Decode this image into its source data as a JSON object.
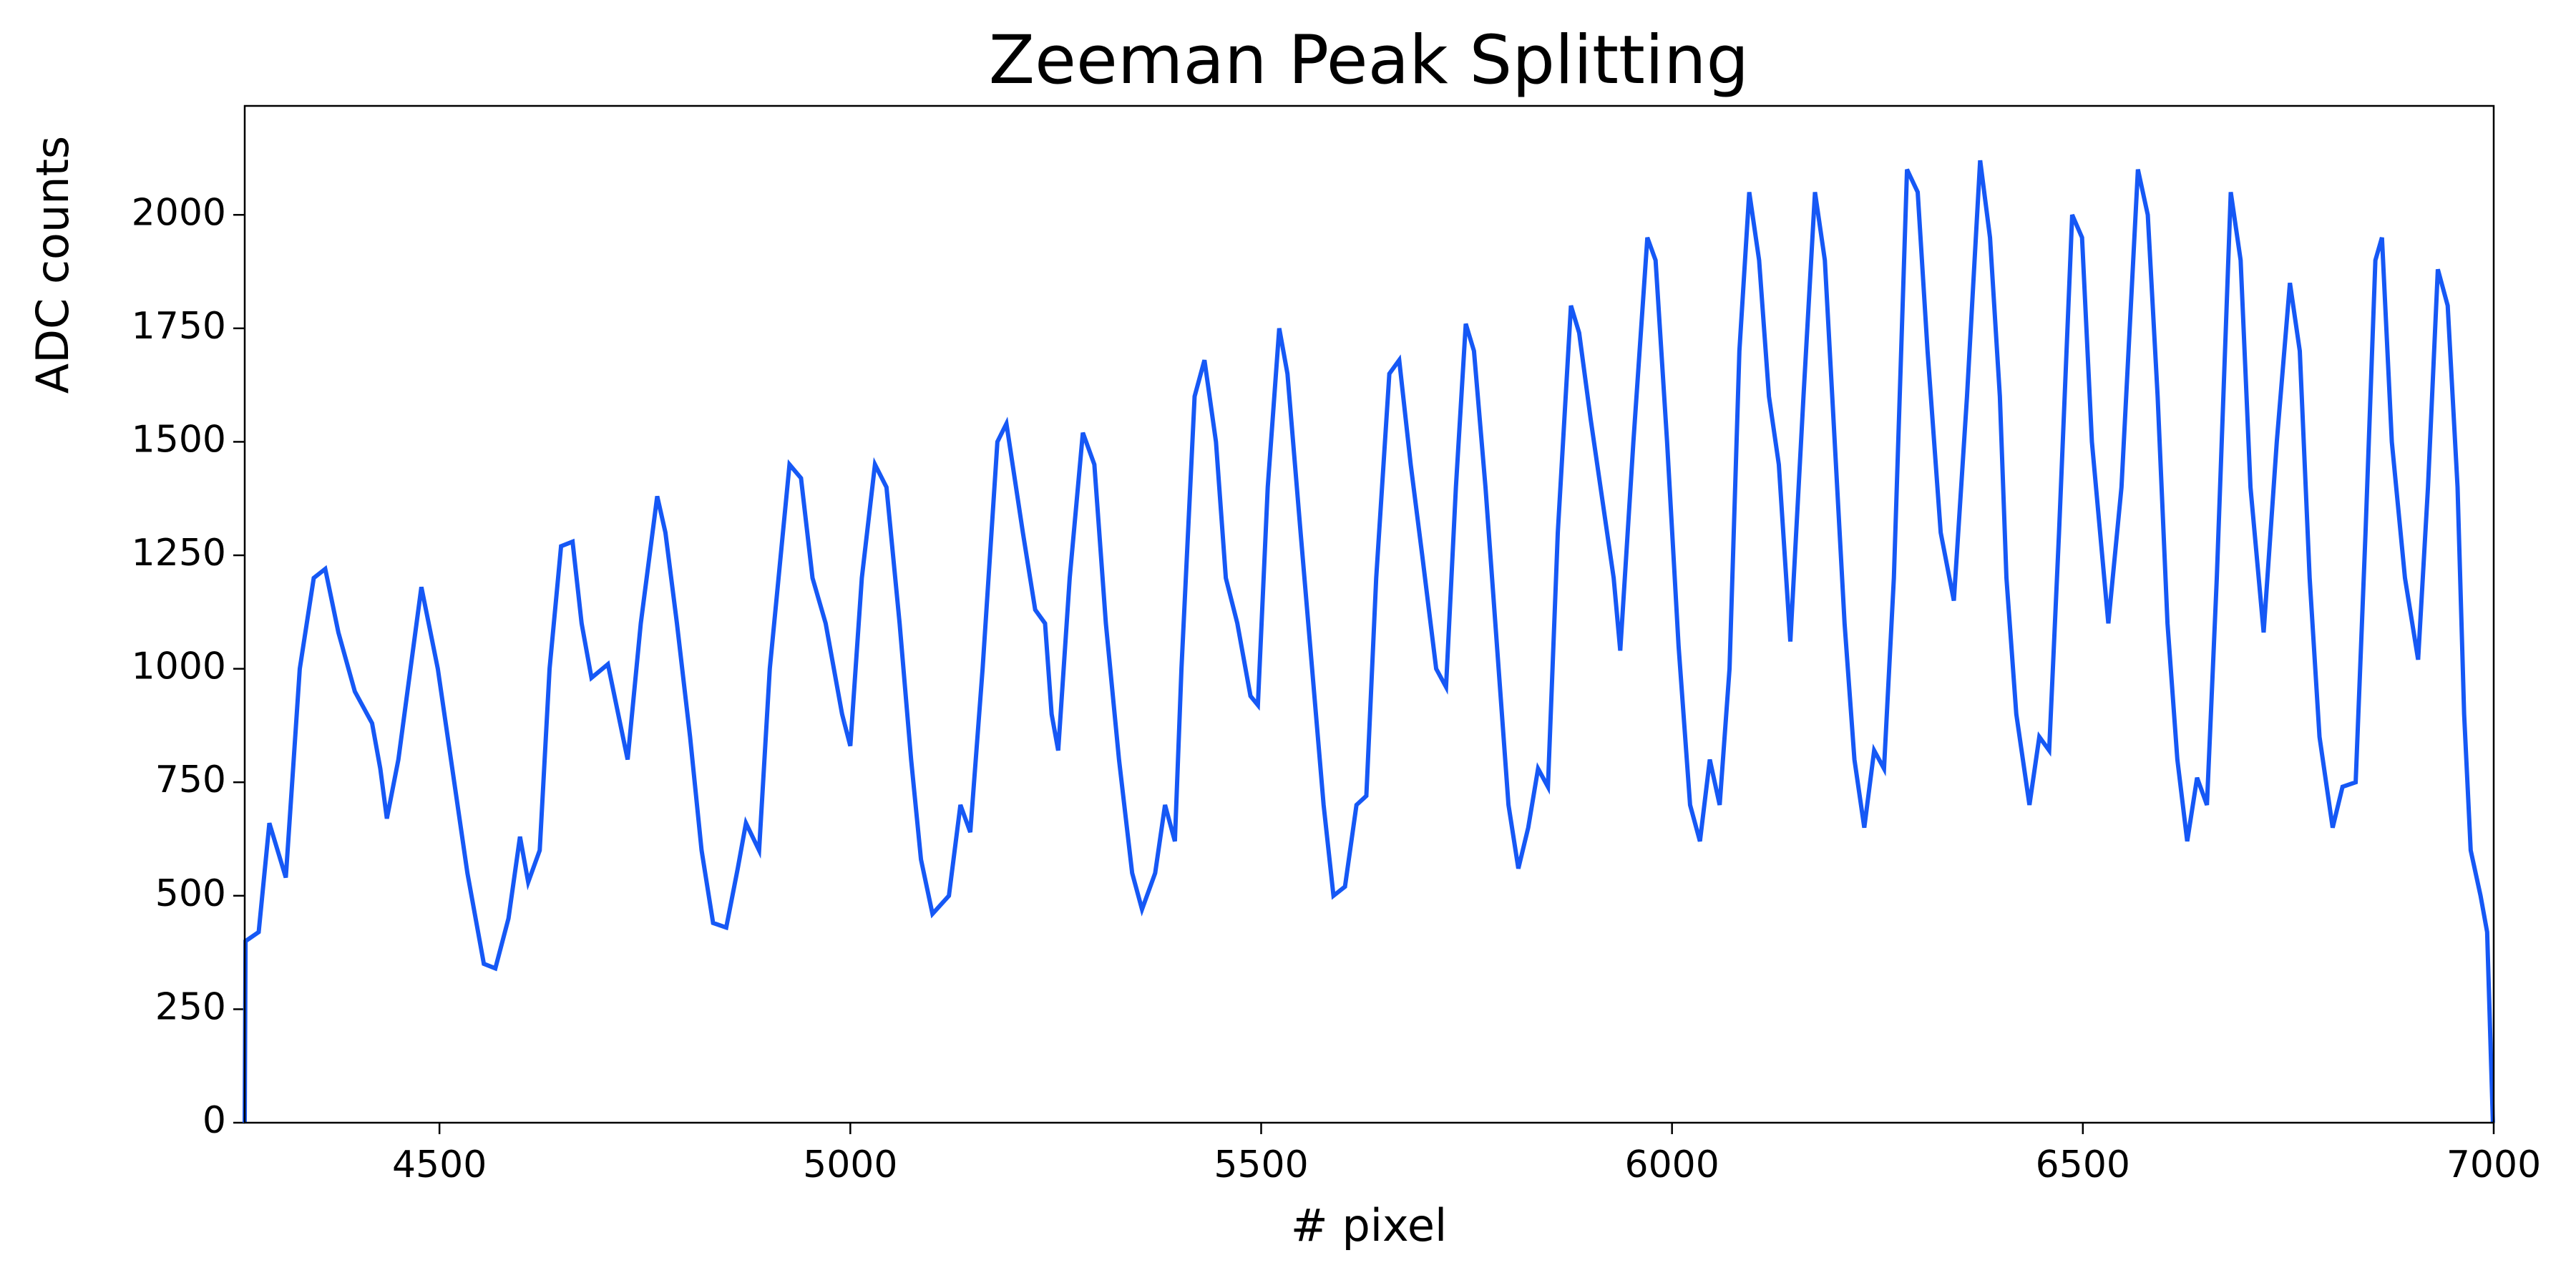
{
  "chart_data": {
    "type": "line",
    "title": "Zeeman Peak Splitting",
    "x_label": "# pixel",
    "y_label": "ADC counts",
    "color": "#1658f5",
    "x": [
      4263,
      4264,
      4280,
      4293,
      4313,
      4330,
      4347,
      4361,
      4377,
      4397,
      4418,
      4428,
      4436,
      4450,
      4478,
      4498,
      4518,
      4534,
      4554,
      4568,
      4584,
      4598,
      4608,
      4622,
      4634,
      4648,
      4662,
      4673,
      4685,
      4705,
      4729,
      4745,
      4765,
      4775,
      4789,
      4805,
      4819,
      4833,
      4849,
      4863,
      4873,
      4889,
      4902,
      4926,
      4940,
      4954,
      4970,
      4990,
      5000,
      5014,
      5030,
      5044,
      5060,
      5074,
      5086,
      5100,
      5120,
      5134,
      5146,
      5161,
      5179,
      5190,
      5210,
      5225,
      5237,
      5245,
      5253,
      5267,
      5283,
      5297,
      5311,
      5327,
      5343,
      5355,
      5371,
      5383,
      5395,
      5403,
      5419,
      5431,
      5445,
      5457,
      5471,
      5487,
      5496,
      5508,
      5522,
      5532,
      5548,
      5562,
      5576,
      5588,
      5602,
      5616,
      5628,
      5640,
      5656,
      5668,
      5682,
      5696,
      5713,
      5725,
      5737,
      5749,
      5759,
      5773,
      5789,
      5801,
      5813,
      5825,
      5837,
      5849,
      5861,
      5877,
      5887,
      5901,
      5913,
      5929,
      5937,
      5953,
      5970,
      5980,
      5994,
      6008,
      6022,
      6034,
      6046,
      6058,
      6070,
      6082,
      6094,
      6106,
      6118,
      6130,
      6144,
      6160,
      6174,
      6186,
      6198,
      6210,
      6222,
      6234,
      6246,
      6258,
      6270,
      6286,
      6299,
      6311,
      6327,
      6343,
      6359,
      6375,
      6387,
      6399,
      6407,
      6419,
      6435,
      6447,
      6459,
      6471,
      6487,
      6499,
      6511,
      6531,
      6547,
      6567,
      6579,
      6591,
      6603,
      6615,
      6627,
      6639,
      6651,
      6663,
      6680,
      6692,
      6704,
      6720,
      6736,
      6752,
      6764,
      6776,
      6788,
      6804,
      6816,
      6832,
      6844,
      6856,
      6864,
      6876,
      6892,
      6908,
      6920,
      6932,
      6944,
      6956,
      6964,
      6972,
      6984,
      6992,
      6999
    ],
    "values": [
      0,
      400,
      420,
      660,
      540,
      1000,
      1200,
      1220,
      1080,
      950,
      880,
      780,
      670,
      800,
      1180,
      1000,
      750,
      550,
      350,
      340,
      450,
      630,
      530,
      600,
      1000,
      1270,
      1280,
      1100,
      980,
      1010,
      800,
      1100,
      1380,
      1300,
      1100,
      850,
      600,
      440,
      430,
      560,
      660,
      600,
      1000,
      1450,
      1420,
      1200,
      1100,
      900,
      830,
      1200,
      1450,
      1400,
      1100,
      800,
      580,
      460,
      500,
      700,
      640,
      1000,
      1500,
      1540,
      1300,
      1130,
      1100,
      900,
      820,
      1200,
      1520,
      1450,
      1100,
      800,
      550,
      470,
      550,
      700,
      620,
      1000,
      1600,
      1680,
      1500,
      1200,
      1100,
      940,
      920,
      1400,
      1750,
      1650,
      1300,
      1000,
      700,
      500,
      520,
      700,
      720,
      1200,
      1650,
      1680,
      1450,
      1250,
      1000,
      960,
      1400,
      1760,
      1700,
      1400,
      1000,
      700,
      560,
      650,
      780,
      740,
      1300,
      1800,
      1740,
      1550,
      1400,
      1200,
      1040,
      1500,
      1950,
      1900,
      1500,
      1050,
      700,
      620,
      800,
      700,
      1000,
      1700,
      2050,
      1900,
      1600,
      1450,
      1060,
      1600,
      2050,
      1900,
      1500,
      1100,
      800,
      650,
      820,
      780,
      1200,
      2100,
      2050,
      1700,
      1300,
      1150,
      1600,
      2120,
      1950,
      1600,
      1200,
      900,
      700,
      850,
      820,
      1300,
      2000,
      1950,
      1500,
      1100,
      1400,
      2100,
      2000,
      1600,
      1100,
      800,
      620,
      760,
      700,
      1200,
      2050,
      1900,
      1400,
      1080,
      1500,
      1850,
      1700,
      1200,
      850,
      650,
      740,
      750,
      1300,
      1900,
      1950,
      1500,
      1200,
      1020,
      1400,
      1880,
      1800,
      1400,
      900,
      600,
      500,
      420,
      0
    ],
    "xlim": [
      4263,
      7000
    ],
    "ylim": [
      0,
      2240
    ],
    "xticks": [
      4500,
      5000,
      5500,
      6000,
      6500,
      7000
    ],
    "yticks": [
      0,
      250,
      500,
      750,
      1000,
      1250,
      1500,
      1750,
      2000
    ]
  }
}
